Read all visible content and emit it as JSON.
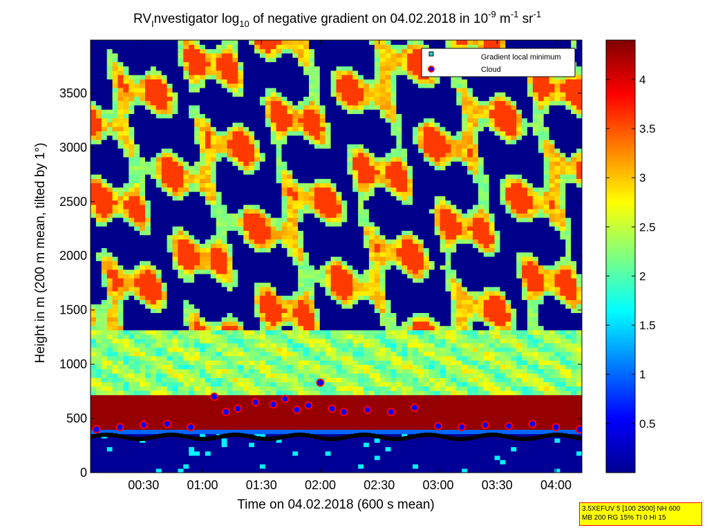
{
  "chart_data": {
    "type": "heatmap",
    "title": {
      "prefix": "RV",
      "sub1": "I",
      "mid": "nvestigator log",
      "sub2": "10",
      "mid2": " of negative gradient on 04.02.2018 in 10",
      "sup1": "-9",
      "mid3": " m",
      "sup2": "-1",
      "mid4": " sr",
      "sup3": "-1"
    },
    "xlabel": "Time on 04.02.2018 (600 s mean)",
    "ylabel": "Height in m (200 m mean, tilted by 1°)",
    "x_ticks": [
      "00:30",
      "01:00",
      "01:30",
      "02:00",
      "02:30",
      "03:00",
      "03:30",
      "04:00"
    ],
    "x_tick_hours": [
      0.5,
      1.0,
      1.5,
      2.0,
      2.5,
      3.0,
      3.5,
      4.0
    ],
    "xlim_hours": [
      0.05,
      4.22
    ],
    "y_ticks": [
      "0",
      "500",
      "1000",
      "1500",
      "2000",
      "2500",
      "3000",
      "3500"
    ],
    "y_tick_values": [
      0,
      500,
      1000,
      1500,
      2000,
      2500,
      3000,
      3500
    ],
    "ylim": [
      0,
      3990
    ],
    "colorbar": {
      "range": [
        0,
        4.4
      ],
      "ticks": [
        "0.5",
        "1",
        "1.5",
        "2",
        "2.5",
        "3",
        "3.5",
        "4"
      ],
      "tick_values": [
        0.5,
        1,
        1.5,
        2,
        2.5,
        3,
        3.5,
        4
      ],
      "colormap": "jet"
    },
    "legend": {
      "placement": "top-right",
      "entries": [
        {
          "label": "Gradient local minimum",
          "marker": "square",
          "color": "#27c7c7"
        },
        {
          "label": "Cloud",
          "marker": "circle",
          "color": "#ff0000"
        }
      ]
    },
    "layers": [
      {
        "name": "near-ground band",
        "height_range_m": [
          360,
          680
        ],
        "log10_value": 4.3
      },
      {
        "name": "aerosol layer",
        "height_range_m": [
          680,
          1300
        ],
        "log10_value": 2.3
      },
      {
        "name": "upper structure",
        "height_range_m": [
          1300,
          3990
        ],
        "log10_value_range": [
          0,
          3.7
        ]
      }
    ],
    "gradient_local_minimum_height_m": 330,
    "cloud_base_height_m": [
      [
        0.1,
        400
      ],
      [
        0.3,
        420
      ],
      [
        0.5,
        440
      ],
      [
        0.7,
        450
      ],
      [
        0.9,
        420
      ],
      [
        1.1,
        700
      ],
      [
        1.2,
        560
      ],
      [
        1.3,
        590
      ],
      [
        1.45,
        650
      ],
      [
        1.6,
        630
      ],
      [
        1.7,
        680
      ],
      [
        1.8,
        580
      ],
      [
        1.9,
        620
      ],
      [
        2.0,
        830
      ],
      [
        2.1,
        590
      ],
      [
        2.2,
        560
      ],
      [
        2.4,
        580
      ],
      [
        2.6,
        560
      ],
      [
        2.8,
        600
      ],
      [
        3.0,
        430
      ],
      [
        3.2,
        420
      ],
      [
        3.4,
        440
      ],
      [
        3.6,
        430
      ],
      [
        3.8,
        450
      ],
      [
        4.0,
        420
      ],
      [
        4.2,
        400
      ]
    ]
  },
  "settings_box": {
    "line1": "3.5XEFUV 5 [100 2500] NH 600",
    "line2": "MB 200 RG 15% TI 0 HI 15"
  }
}
